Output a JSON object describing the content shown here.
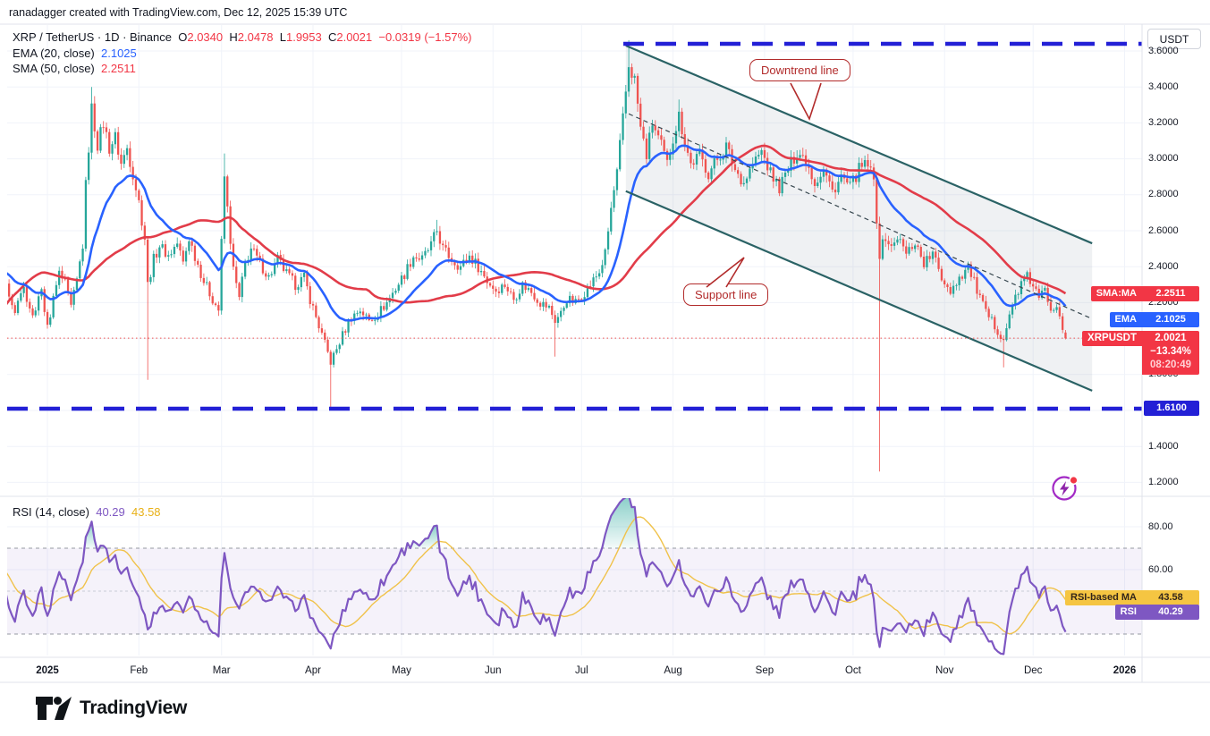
{
  "header": {
    "attribution": "ranadagger created with TradingView.com, Dec 12, 2025 15:39 UTC"
  },
  "legend": {
    "title": "XRP / TetherUS · 1D · Binance",
    "o_label": "O",
    "o": "2.0340",
    "h_label": "H",
    "h": "2.0478",
    "l_label": "L",
    "l": "1.9953",
    "c_label": "C",
    "c": "2.0021",
    "change": "−0.0319 (−1.57%)",
    "ema_label": "EMA (20, close)",
    "ema_value": "2.1025",
    "sma_label": "SMA (50, close)",
    "sma_value": "2.2511"
  },
  "price_axis": {
    "currency_button": "USDT",
    "labels": [
      {
        "text": "3.6000",
        "price": 3.6
      },
      {
        "text": "3.4000",
        "price": 3.4
      },
      {
        "text": "3.2000",
        "price": 3.2
      },
      {
        "text": "3.0000",
        "price": 3.0
      },
      {
        "text": "2.8000",
        "price": 2.8
      },
      {
        "text": "2.6000",
        "price": 2.6
      },
      {
        "text": "2.4000",
        "price": 2.4
      },
      {
        "text": "2.2000",
        "price": 2.2
      },
      {
        "text": "1.8000",
        "price": 1.8
      },
      {
        "text": "1.4000",
        "price": 1.4
      },
      {
        "text": "1.2000",
        "price": 1.2
      }
    ]
  },
  "time_axis": {
    "labels": [
      {
        "text": "2025",
        "day": 0,
        "bold": true
      },
      {
        "text": "Feb",
        "day": 31
      },
      {
        "text": "Mar",
        "day": 59
      },
      {
        "text": "Apr",
        "day": 90
      },
      {
        "text": "May",
        "day": 120
      },
      {
        "text": "Jun",
        "day": 151
      },
      {
        "text": "Jul",
        "day": 181
      },
      {
        "text": "Aug",
        "day": 212
      },
      {
        "text": "Sep",
        "day": 243
      },
      {
        "text": "Oct",
        "day": 273
      },
      {
        "text": "Nov",
        "day": 304
      },
      {
        "text": "Dec",
        "day": 334
      },
      {
        "text": "2026",
        "day": 365,
        "bold": true
      }
    ]
  },
  "badges": {
    "sma_name": "SMA:MA",
    "sma_value": "2.2511",
    "ema_name": "EMA",
    "ema_value": "2.1025",
    "symbol_name": "XRPUSDT",
    "symbol_price": "2.0021",
    "symbol_change": "−13.34%",
    "symbol_timer": "08:20:49",
    "support_level": "1.6100",
    "rsi_ma_name": "RSI-based MA",
    "rsi_ma_value": "43.58",
    "rsi_name": "RSI",
    "rsi_value": "40.29"
  },
  "annotations": {
    "downtrend": "Downtrend line",
    "support": "Support line"
  },
  "rsi_panel": {
    "legend_label": "RSI (14, close)",
    "rsi_value": "40.29",
    "ma_value": "43.58",
    "axis_labels": [
      {
        "text": "80.00",
        "v": 80
      },
      {
        "text": "60.00",
        "v": 60
      }
    ]
  },
  "footer": {
    "brand": "TradingView"
  },
  "colors": {
    "up": "#26a69a",
    "down": "#ef5350",
    "ema": "#2962ff",
    "sma": "#e23c49",
    "channel": "#2a6265",
    "channel_fill": "rgba(130,150,165,0.13)",
    "level_blue": "#2320d6",
    "current_dotted": "#ef5350",
    "rsi_line": "#7e57c2",
    "rsi_ma_line": "#f0c24a",
    "rsi_band": "rgba(126,87,194,0.08)",
    "grid": "#f0f3fa",
    "separator": "#e0e3eb",
    "overbought_fill": "#26a69a"
  },
  "chart_data": {
    "type": "candlestick",
    "symbol": "XRP/USDT",
    "exchange": "Binance",
    "interval": "1D",
    "title": "XRP / TetherUS · 1D · Binance",
    "ohlc_current": {
      "open": 2.034,
      "high": 2.0478,
      "low": 1.9953,
      "close": 2.0021,
      "change": -0.0319,
      "change_pct": -1.57
    },
    "indicators": {
      "ema20": 2.1025,
      "sma50": 2.2511,
      "rsi14": 40.29,
      "rsi_ma14": 43.58
    },
    "key_levels": {
      "resistance": 3.64,
      "support": 1.61,
      "current": 2.0021
    },
    "ylim": [
      1.15,
      3.72
    ],
    "rsi_guides": [
      70,
      50,
      30
    ],
    "close_anchors_day_price": [
      [
        -75,
        0.52
      ],
      [
        -70,
        0.56
      ],
      [
        -65,
        0.98
      ],
      [
        -60,
        1.42
      ],
      [
        -55,
        1.45
      ],
      [
        -50,
        2.25
      ],
      [
        -46,
        2.62
      ],
      [
        -42,
        2.38
      ],
      [
        -38,
        2.52
      ],
      [
        -34,
        2.32
      ],
      [
        -30,
        2.42
      ],
      [
        -26,
        2.58
      ],
      [
        -22,
        2.42
      ],
      [
        -18,
        2.35
      ],
      [
        -14,
        2.3
      ],
      [
        -11,
        2.17
      ],
      [
        -8,
        2.27
      ],
      [
        -5,
        2.12
      ],
      [
        -2,
        2.26
      ],
      [
        0,
        2.06
      ],
      [
        2,
        2.22
      ],
      [
        4,
        2.36
      ],
      [
        6,
        2.3
      ],
      [
        8,
        2.17
      ],
      [
        10,
        2.32
      ],
      [
        12,
        2.52
      ],
      [
        13,
        2.85
      ],
      [
        15,
        3.28
      ],
      [
        17,
        3.08
      ],
      [
        19,
        3.2
      ],
      [
        21,
        3.06
      ],
      [
        23,
        3.12
      ],
      [
        25,
        2.97
      ],
      [
        27,
        3.06
      ],
      [
        29,
        2.92
      ],
      [
        31,
        2.76
      ],
      [
        33,
        2.56
      ],
      [
        34,
        2.3
      ],
      [
        36,
        2.44
      ],
      [
        38,
        2.52
      ],
      [
        41,
        2.46
      ],
      [
        44,
        2.53
      ],
      [
        46,
        2.42
      ],
      [
        48,
        2.56
      ],
      [
        50,
        2.46
      ],
      [
        53,
        2.32
      ],
      [
        56,
        2.22
      ],
      [
        58,
        2.16
      ],
      [
        60,
        2.9
      ],
      [
        61,
        2.72
      ],
      [
        63,
        2.38
      ],
      [
        65,
        2.22
      ],
      [
        67,
        2.42
      ],
      [
        69,
        2.5
      ],
      [
        72,
        2.42
      ],
      [
        75,
        2.34
      ],
      [
        78,
        2.44
      ],
      [
        81,
        2.36
      ],
      [
        84,
        2.3
      ],
      [
        87,
        2.34
      ],
      [
        89,
        2.22
      ],
      [
        91,
        2.12
      ],
      [
        93,
        2.02
      ],
      [
        96,
        1.87
      ],
      [
        98,
        1.94
      ],
      [
        100,
        2.02
      ],
      [
        103,
        2.12
      ],
      [
        106,
        2.16
      ],
      [
        109,
        2.1
      ],
      [
        112,
        2.14
      ],
      [
        115,
        2.2
      ],
      [
        118,
        2.28
      ],
      [
        121,
        2.36
      ],
      [
        124,
        2.46
      ],
      [
        127,
        2.44
      ],
      [
        130,
        2.52
      ],
      [
        132,
        2.6
      ],
      [
        134,
        2.5
      ],
      [
        137,
        2.44
      ],
      [
        140,
        2.4
      ],
      [
        143,
        2.46
      ],
      [
        146,
        2.4
      ],
      [
        149,
        2.32
      ],
      [
        152,
        2.27
      ],
      [
        155,
        2.3
      ],
      [
        158,
        2.22
      ],
      [
        161,
        2.3
      ],
      [
        164,
        2.26
      ],
      [
        167,
        2.2
      ],
      [
        170,
        2.17
      ],
      [
        172,
        2.1
      ],
      [
        174,
        2.14
      ],
      [
        176,
        2.22
      ],
      [
        179,
        2.2
      ],
      [
        181,
        2.24
      ],
      [
        184,
        2.3
      ],
      [
        187,
        2.37
      ],
      [
        189,
        2.47
      ],
      [
        191,
        2.72
      ],
      [
        193,
        2.92
      ],
      [
        195,
        3.22
      ],
      [
        197,
        3.52
      ],
      [
        199,
        3.44
      ],
      [
        201,
        3.17
      ],
      [
        203,
        3.02
      ],
      [
        205,
        3.2
      ],
      [
        208,
        3.07
      ],
      [
        210,
        2.97
      ],
      [
        212,
        3.12
      ],
      [
        214,
        3.24
      ],
      [
        216,
        3.1
      ],
      [
        218,
        2.97
      ],
      [
        221,
        3.02
      ],
      [
        224,
        2.92
      ],
      [
        227,
        3.0
      ],
      [
        230,
        3.07
      ],
      [
        233,
        2.94
      ],
      [
        236,
        2.87
      ],
      [
        239,
        2.97
      ],
      [
        242,
        3.04
      ],
      [
        245,
        2.92
      ],
      [
        248,
        2.84
      ],
      [
        251,
        2.94
      ],
      [
        254,
        3.04
      ],
      [
        257,
        3.0
      ],
      [
        260,
        2.87
      ],
      [
        263,
        2.94
      ],
      [
        266,
        2.82
      ],
      [
        269,
        2.9
      ],
      [
        272,
        2.84
      ],
      [
        275,
        2.94
      ],
      [
        278,
        2.97
      ],
      [
        280,
        2.87
      ],
      [
        282,
        2.47
      ],
      [
        284,
        2.57
      ],
      [
        286,
        2.5
      ],
      [
        288,
        2.57
      ],
      [
        291,
        2.47
      ],
      [
        294,
        2.54
      ],
      [
        297,
        2.42
      ],
      [
        300,
        2.47
      ],
      [
        303,
        2.34
      ],
      [
        306,
        2.27
      ],
      [
        309,
        2.34
      ],
      [
        312,
        2.4
      ],
      [
        315,
        2.27
      ],
      [
        318,
        2.14
      ],
      [
        321,
        2.07
      ],
      [
        324,
        2.0
      ],
      [
        326,
        2.12
      ],
      [
        328,
        2.24
      ],
      [
        330,
        2.3
      ],
      [
        332,
        2.34
      ],
      [
        334,
        2.3
      ],
      [
        336,
        2.22
      ],
      [
        338,
        2.27
      ],
      [
        340,
        2.17
      ],
      [
        342,
        2.2
      ],
      [
        344,
        2.07
      ],
      [
        345,
        2.0021
      ]
    ],
    "wick_events": [
      [
        15,
        "high",
        3.4
      ],
      [
        34,
        "low",
        1.77
      ],
      [
        60,
        "high",
        3.03
      ],
      [
        96,
        "low",
        1.62
      ],
      [
        132,
        "high",
        2.66
      ],
      [
        172,
        "low",
        1.9
      ],
      [
        197,
        "high",
        3.66
      ],
      [
        214,
        "high",
        3.33
      ],
      [
        282,
        "low",
        1.26
      ],
      [
        324,
        "low",
        1.84
      ]
    ],
    "trend_channel": {
      "upper_day_price": [
        [
          196,
          3.63
        ],
        [
          354,
          2.53
        ]
      ],
      "lower_day_price": [
        [
          196,
          2.82
        ],
        [
          354,
          1.71
        ]
      ],
      "midline_day_price": [
        [
          197,
          3.25
        ],
        [
          354,
          2.11
        ]
      ]
    }
  }
}
